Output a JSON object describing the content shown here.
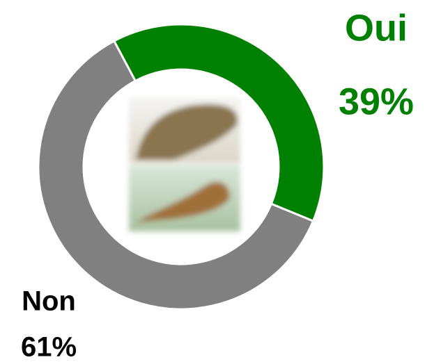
{
  "chart_data": {
    "type": "donut",
    "categories": [
      "Oui",
      "Non"
    ],
    "values": [
      39,
      61
    ],
    "value_labels": [
      "39%",
      "61%"
    ],
    "colors": [
      "#008000",
      "#808080"
    ]
  }
}
